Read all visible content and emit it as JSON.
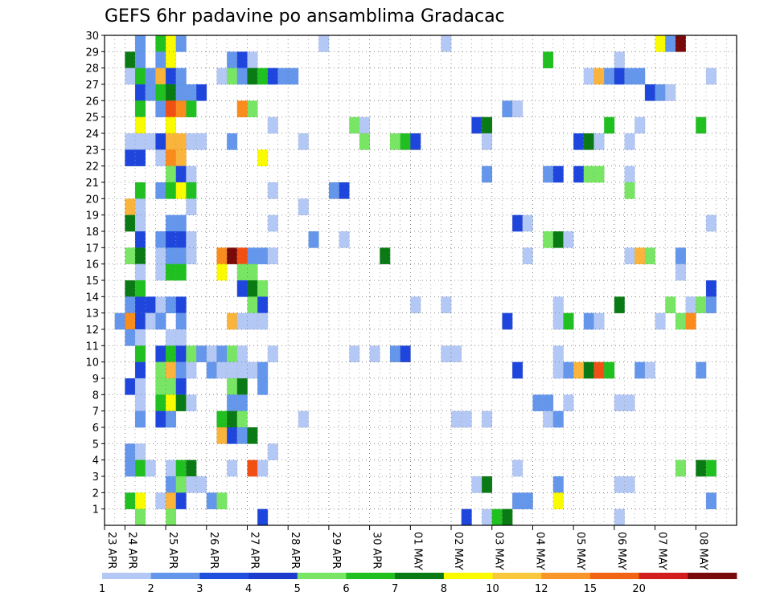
{
  "chart_data": {
    "type": "heatmap",
    "title": "GEFS 6hr padavine po ansamblima Gradacac",
    "x_tick_labels": [
      "23 APR",
      "24 APR",
      "25 APR",
      "26 APR",
      "27 APR",
      "28 APR",
      "29 APR",
      "30 APR",
      "01 MAY",
      "02 MAY",
      "03 MAY",
      "04 MAY",
      "05 MAY",
      "06 MAY",
      "07 MAY",
      "08 MAY"
    ],
    "steps_per_day": 4,
    "y_range": [
      0,
      30
    ],
    "y_tick_labels": [
      "1",
      "2",
      "3",
      "4",
      "5",
      "6",
      "7",
      "8",
      "9",
      "10",
      "11",
      "12",
      "13",
      "14",
      "15",
      "16",
      "17",
      "18",
      "19",
      "20",
      "21",
      "22",
      "23",
      "24",
      "25",
      "26",
      "27",
      "28",
      "29",
      "30"
    ],
    "grid": true,
    "colorbar": {
      "labels": [
        "1",
        "2",
        "3",
        "4",
        "5",
        "6",
        "7",
        "8",
        "10",
        "12",
        "15",
        "20"
      ],
      "colors": [
        "#b4c8f5",
        "#6496eb",
        "#2050dc",
        "#1e3ccc",
        "#78e664",
        "#20c020",
        "#0a7a14",
        "#fafa00",
        "#fac83c",
        "#fa9628",
        "#f06414",
        "#d21e1e",
        "#780a0a"
      ]
    },
    "levels": [
      {
        "from": 1,
        "to": 2,
        "color": "#b4c8f5"
      },
      {
        "from": 2,
        "to": 3,
        "color": "#6496eb"
      },
      {
        "from": 3,
        "to": 4,
        "color": "#1e46dc"
      },
      {
        "from": 4,
        "to": 5,
        "color": "#78e664"
      },
      {
        "from": 5,
        "to": 6,
        "color": "#20c020"
      },
      {
        "from": 6,
        "to": 7,
        "color": "#0a7a14"
      },
      {
        "from": 7,
        "to": 8,
        "color": "#fafa00"
      },
      {
        "from": 8,
        "to": 10,
        "color": "#fab43c"
      },
      {
        "from": 10,
        "to": 12,
        "color": "#fa8c1e"
      },
      {
        "from": 12,
        "to": 15,
        "color": "#f05014"
      },
      {
        "from": 15,
        "to": 20,
        "color": "#c81414"
      },
      {
        "from": 20,
        "to": 30,
        "color": "#780a0a"
      }
    ],
    "cells": [
      [
        30,
        3,
        2
      ],
      [
        30,
        5,
        5
      ],
      [
        30,
        6,
        7
      ],
      [
        30,
        7,
        2
      ],
      [
        30,
        21,
        1
      ],
      [
        30,
        33,
        1
      ],
      [
        30,
        54,
        7
      ],
      [
        30,
        55,
        2
      ],
      [
        30,
        56,
        20
      ],
      [
        29,
        2,
        6
      ],
      [
        29,
        3,
        2
      ],
      [
        29,
        5,
        2
      ],
      [
        29,
        6,
        7
      ],
      [
        29,
        12,
        2
      ],
      [
        29,
        13,
        3
      ],
      [
        29,
        14,
        1
      ],
      [
        29,
        43,
        5
      ],
      [
        29,
        50,
        1
      ],
      [
        28,
        2,
        1
      ],
      [
        28,
        3,
        5
      ],
      [
        28,
        4,
        2
      ],
      [
        28,
        5,
        8
      ],
      [
        28,
        6,
        3
      ],
      [
        28,
        7,
        2
      ],
      [
        28,
        11,
        1
      ],
      [
        28,
        12,
        4
      ],
      [
        28,
        13,
        2
      ],
      [
        28,
        14,
        6
      ],
      [
        28,
        15,
        5
      ],
      [
        28,
        16,
        3
      ],
      [
        28,
        17,
        2
      ],
      [
        28,
        18,
        2
      ],
      [
        28,
        47,
        1
      ],
      [
        28,
        48,
        8
      ],
      [
        28,
        49,
        2
      ],
      [
        28,
        50,
        3
      ],
      [
        28,
        51,
        2
      ],
      [
        28,
        52,
        2
      ],
      [
        28,
        59,
        1
      ],
      [
        27,
        3,
        3
      ],
      [
        27,
        4,
        2
      ],
      [
        27,
        5,
        5
      ],
      [
        27,
        6,
        6
      ],
      [
        27,
        7,
        2
      ],
      [
        27,
        8,
        2
      ],
      [
        27,
        9,
        3
      ],
      [
        27,
        53,
        3
      ],
      [
        27,
        54,
        2
      ],
      [
        27,
        55,
        1
      ],
      [
        26,
        3,
        5
      ],
      [
        26,
        5,
        2
      ],
      [
        26,
        6,
        12
      ],
      [
        26,
        7,
        10
      ],
      [
        26,
        8,
        5
      ],
      [
        26,
        13,
        10
      ],
      [
        26,
        14,
        4
      ],
      [
        26,
        39,
        2
      ],
      [
        26,
        40,
        1
      ],
      [
        25,
        3,
        7
      ],
      [
        25,
        6,
        7
      ],
      [
        25,
        16,
        1
      ],
      [
        25,
        24,
        4
      ],
      [
        25,
        25,
        1
      ],
      [
        25,
        36,
        3
      ],
      [
        25,
        37,
        6
      ],
      [
        25,
        49,
        5
      ],
      [
        25,
        52,
        1
      ],
      [
        25,
        58,
        5
      ],
      [
        24,
        2,
        1
      ],
      [
        24,
        3,
        1
      ],
      [
        24,
        4,
        1
      ],
      [
        24,
        5,
        3
      ],
      [
        24,
        6,
        8
      ],
      [
        24,
        7,
        8
      ],
      [
        24,
        8,
        1
      ],
      [
        24,
        9,
        1
      ],
      [
        24,
        12,
        2
      ],
      [
        24,
        19,
        1
      ],
      [
        24,
        25,
        4
      ],
      [
        24,
        28,
        4
      ],
      [
        24,
        29,
        5
      ],
      [
        24,
        30,
        3
      ],
      [
        24,
        37,
        1
      ],
      [
        24,
        46,
        3
      ],
      [
        24,
        47,
        6
      ],
      [
        24,
        48,
        1
      ],
      [
        24,
        51,
        1
      ],
      [
        23,
        2,
        3
      ],
      [
        23,
        3,
        3
      ],
      [
        23,
        5,
        1
      ],
      [
        23,
        6,
        10
      ],
      [
        23,
        7,
        8
      ],
      [
        23,
        15,
        7
      ],
      [
        22,
        6,
        4
      ],
      [
        22,
        7,
        3
      ],
      [
        22,
        8,
        1
      ],
      [
        22,
        37,
        2
      ],
      [
        22,
        43,
        2
      ],
      [
        22,
        44,
        3
      ],
      [
        22,
        46,
        3
      ],
      [
        22,
        47,
        4
      ],
      [
        22,
        48,
        4
      ],
      [
        22,
        51,
        1
      ],
      [
        21,
        3,
        5
      ],
      [
        21,
        5,
        2
      ],
      [
        21,
        6,
        5
      ],
      [
        21,
        7,
        7
      ],
      [
        21,
        8,
        5
      ],
      [
        21,
        16,
        1
      ],
      [
        21,
        22,
        2
      ],
      [
        21,
        23,
        3
      ],
      [
        21,
        51,
        4
      ],
      [
        20,
        2,
        8
      ],
      [
        20,
        3,
        1
      ],
      [
        20,
        8,
        1
      ],
      [
        20,
        19,
        1
      ],
      [
        19,
        2,
        6
      ],
      [
        19,
        3,
        1
      ],
      [
        19,
        6,
        2
      ],
      [
        19,
        7,
        2
      ],
      [
        19,
        16,
        1
      ],
      [
        19,
        40,
        3
      ],
      [
        19,
        41,
        1
      ],
      [
        19,
        59,
        1
      ],
      [
        18,
        3,
        3
      ],
      [
        18,
        5,
        2
      ],
      [
        18,
        6,
        3
      ],
      [
        18,
        7,
        3
      ],
      [
        18,
        8,
        1
      ],
      [
        18,
        20,
        2
      ],
      [
        18,
        23,
        1
      ],
      [
        18,
        43,
        4
      ],
      [
        18,
        44,
        6
      ],
      [
        18,
        45,
        1
      ],
      [
        17,
        2,
        4
      ],
      [
        17,
        3,
        6
      ],
      [
        17,
        5,
        1
      ],
      [
        17,
        6,
        2
      ],
      [
        17,
        7,
        2
      ],
      [
        17,
        8,
        1
      ],
      [
        17,
        11,
        10
      ],
      [
        17,
        12,
        20
      ],
      [
        17,
        13,
        12
      ],
      [
        17,
        14,
        2
      ],
      [
        17,
        15,
        2
      ],
      [
        17,
        16,
        1
      ],
      [
        17,
        27,
        6
      ],
      [
        17,
        41,
        1
      ],
      [
        17,
        51,
        1
      ],
      [
        17,
        52,
        8
      ],
      [
        17,
        53,
        4
      ],
      [
        17,
        56,
        2
      ],
      [
        16,
        3,
        1
      ],
      [
        16,
        5,
        1
      ],
      [
        16,
        6,
        5
      ],
      [
        16,
        7,
        5
      ],
      [
        16,
        11,
        7
      ],
      [
        16,
        13,
        4
      ],
      [
        16,
        14,
        4
      ],
      [
        16,
        56,
        1
      ],
      [
        15,
        2,
        6
      ],
      [
        15,
        3,
        5
      ],
      [
        15,
        13,
        3
      ],
      [
        15,
        14,
        6
      ],
      [
        15,
        15,
        4
      ],
      [
        15,
        59,
        3
      ],
      [
        14,
        2,
        2
      ],
      [
        14,
        3,
        3
      ],
      [
        14,
        4,
        3
      ],
      [
        14,
        5,
        1
      ],
      [
        14,
        6,
        2
      ],
      [
        14,
        7,
        3
      ],
      [
        14,
        14,
        4
      ],
      [
        14,
        15,
        3
      ],
      [
        14,
        30,
        1
      ],
      [
        14,
        33,
        1
      ],
      [
        14,
        44,
        1
      ],
      [
        14,
        50,
        6
      ],
      [
        14,
        55,
        4
      ],
      [
        14,
        57,
        1
      ],
      [
        14,
        58,
        4
      ],
      [
        14,
        59,
        2
      ],
      [
        13,
        1,
        2
      ],
      [
        13,
        2,
        10
      ],
      [
        13,
        3,
        3
      ],
      [
        13,
        4,
        1
      ],
      [
        13,
        5,
        2
      ],
      [
        13,
        7,
        2
      ],
      [
        13,
        12,
        8
      ],
      [
        13,
        13,
        1
      ],
      [
        13,
        14,
        1
      ],
      [
        13,
        15,
        1
      ],
      [
        13,
        39,
        3
      ],
      [
        13,
        44,
        1
      ],
      [
        13,
        45,
        5
      ],
      [
        13,
        47,
        2
      ],
      [
        13,
        48,
        1
      ],
      [
        13,
        54,
        1
      ],
      [
        13,
        56,
        4
      ],
      [
        13,
        57,
        10
      ],
      [
        12,
        2,
        2
      ],
      [
        12,
        3,
        1
      ],
      [
        12,
        6,
        1
      ],
      [
        12,
        7,
        1
      ],
      [
        11,
        3,
        5
      ],
      [
        11,
        5,
        3
      ],
      [
        11,
        6,
        5
      ],
      [
        11,
        7,
        3
      ],
      [
        11,
        8,
        4
      ],
      [
        11,
        9,
        2
      ],
      [
        11,
        10,
        1
      ],
      [
        11,
        11,
        2
      ],
      [
        11,
        12,
        4
      ],
      [
        11,
        13,
        1
      ],
      [
        11,
        16,
        1
      ],
      [
        11,
        24,
        1
      ],
      [
        11,
        26,
        1
      ],
      [
        11,
        28,
        2
      ],
      [
        11,
        29,
        3
      ],
      [
        11,
        33,
        1
      ],
      [
        11,
        34,
        1
      ],
      [
        11,
        44,
        1
      ],
      [
        10,
        3,
        3
      ],
      [
        10,
        5,
        4
      ],
      [
        10,
        6,
        8
      ],
      [
        10,
        7,
        2
      ],
      [
        10,
        8,
        1
      ],
      [
        10,
        10,
        2
      ],
      [
        10,
        11,
        1
      ],
      [
        10,
        12,
        1
      ],
      [
        10,
        13,
        1
      ],
      [
        10,
        14,
        1
      ],
      [
        10,
        15,
        2
      ],
      [
        10,
        40,
        3
      ],
      [
        10,
        44,
        1
      ],
      [
        10,
        45,
        2
      ],
      [
        10,
        46,
        8
      ],
      [
        10,
        47,
        6
      ],
      [
        10,
        48,
        12
      ],
      [
        10,
        49,
        5
      ],
      [
        10,
        52,
        2
      ],
      [
        10,
        53,
        1
      ],
      [
        10,
        58,
        2
      ],
      [
        9,
        2,
        3
      ],
      [
        9,
        3,
        1
      ],
      [
        9,
        5,
        4
      ],
      [
        9,
        6,
        4
      ],
      [
        9,
        7,
        3
      ],
      [
        9,
        12,
        4
      ],
      [
        9,
        13,
        6
      ],
      [
        9,
        15,
        2
      ],
      [
        8,
        3,
        1
      ],
      [
        8,
        5,
        5
      ],
      [
        8,
        6,
        7
      ],
      [
        8,
        7,
        6
      ],
      [
        8,
        8,
        1
      ],
      [
        8,
        12,
        2
      ],
      [
        8,
        13,
        2
      ],
      [
        8,
        42,
        2
      ],
      [
        8,
        43,
        2
      ],
      [
        8,
        45,
        1
      ],
      [
        8,
        50,
        1
      ],
      [
        8,
        51,
        1
      ],
      [
        7,
        3,
        2
      ],
      [
        7,
        5,
        3
      ],
      [
        7,
        6,
        2
      ],
      [
        7,
        11,
        5
      ],
      [
        7,
        12,
        6
      ],
      [
        7,
        13,
        4
      ],
      [
        7,
        19,
        1
      ],
      [
        7,
        34,
        1
      ],
      [
        7,
        35,
        1
      ],
      [
        7,
        37,
        1
      ],
      [
        7,
        43,
        1
      ],
      [
        7,
        44,
        2
      ],
      [
        6,
        11,
        8
      ],
      [
        6,
        12,
        3
      ],
      [
        6,
        13,
        2
      ],
      [
        6,
        14,
        6
      ],
      [
        5,
        2,
        2
      ],
      [
        5,
        3,
        1
      ],
      [
        5,
        16,
        1
      ],
      [
        4,
        2,
        2
      ],
      [
        4,
        3,
        5
      ],
      [
        4,
        4,
        1
      ],
      [
        4,
        6,
        1
      ],
      [
        4,
        7,
        5
      ],
      [
        4,
        8,
        6
      ],
      [
        4,
        12,
        1
      ],
      [
        4,
        14,
        12
      ],
      [
        4,
        15,
        1
      ],
      [
        4,
        40,
        1
      ],
      [
        4,
        56,
        4
      ],
      [
        4,
        58,
        6
      ],
      [
        4,
        59,
        5
      ],
      [
        3,
        6,
        2
      ],
      [
        3,
        7,
        4
      ],
      [
        3,
        8,
        1
      ],
      [
        3,
        9,
        1
      ],
      [
        3,
        36,
        1
      ],
      [
        3,
        37,
        6
      ],
      [
        3,
        44,
        2
      ],
      [
        3,
        50,
        1
      ],
      [
        3,
        51,
        1
      ],
      [
        2,
        2,
        5
      ],
      [
        2,
        3,
        7
      ],
      [
        2,
        5,
        1
      ],
      [
        2,
        6,
        8
      ],
      [
        2,
        7,
        3
      ],
      [
        2,
        10,
        2
      ],
      [
        2,
        11,
        4
      ],
      [
        2,
        40,
        2
      ],
      [
        2,
        41,
        2
      ],
      [
        2,
        44,
        7
      ],
      [
        2,
        59,
        2
      ],
      [
        1,
        3,
        4
      ],
      [
        1,
        6,
        4
      ],
      [
        1,
        15,
        3
      ],
      [
        1,
        35,
        3
      ],
      [
        1,
        37,
        1
      ],
      [
        1,
        38,
        5
      ],
      [
        1,
        39,
        6
      ],
      [
        1,
        50,
        1
      ]
    ]
  }
}
